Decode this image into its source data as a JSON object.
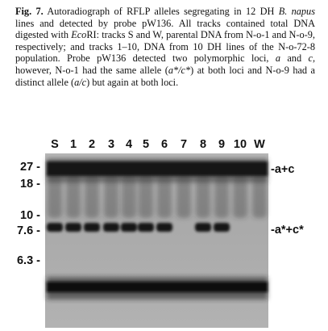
{
  "figure": {
    "label": "Fig. 7.",
    "caption_parts": [
      {
        "t": "Fig. 7.",
        "s": "b"
      },
      {
        "t": " Autoradiograph of RFLP alleles segregating in 12 DH ",
        "s": ""
      },
      {
        "t": "B. napus",
        "s": "i"
      },
      {
        "t": " lines and detected by probe pW136. All tracks contained total DNA digested with ",
        "s": ""
      },
      {
        "t": "Eco",
        "s": "i"
      },
      {
        "t": "RI: tracks S and W, parental DNA from N-o-1 and N-o-9, respectively; and tracks 1–10, DNA from 10 DH lines of the N-o-72-8 population. Probe pW136 detected two polymorphic loci, ",
        "s": ""
      },
      {
        "t": "a",
        "s": "i"
      },
      {
        "t": " and ",
        "s": ""
      },
      {
        "t": "c",
        "s": "i"
      },
      {
        "t": ", however, N-o-1 had the same allele (",
        "s": ""
      },
      {
        "t": "a*/c*",
        "s": "i"
      },
      {
        "t": ") at both loci and N-o-9 had a distinct allele (",
        "s": ""
      },
      {
        "t": "a/c",
        "s": "i"
      },
      {
        "t": ") but again at both loci.",
        "s": ""
      }
    ]
  },
  "gel": {
    "lanes": [
      {
        "label": "S",
        "lower": true
      },
      {
        "label": "1",
        "lower": true
      },
      {
        "label": "2",
        "lower": true
      },
      {
        "label": "3",
        "lower": true
      },
      {
        "label": "4",
        "lower": true
      },
      {
        "label": "5",
        "lower": true
      },
      {
        "label": "6",
        "lower": true
      },
      {
        "label": "7",
        "lower": false
      },
      {
        "label": "8",
        "lower": true
      },
      {
        "label": "9",
        "lower": true
      },
      {
        "label": "10",
        "lower": false
      },
      {
        "label": "W",
        "lower": false
      }
    ],
    "size_markers": [
      "27 -",
      "18 -",
      "10 -",
      "7.6 -",
      "6.3 -"
    ],
    "band_labels": [
      "-a+c",
      "-a*+c*"
    ]
  }
}
